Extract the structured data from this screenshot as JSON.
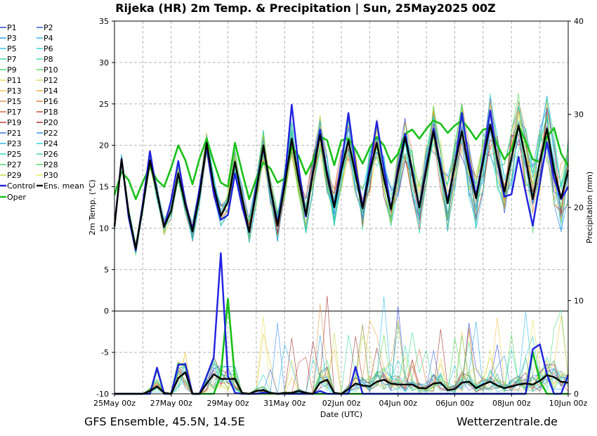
{
  "chart_data": {
    "type": "line",
    "title": "Rijeka  (HR)  2m Temp. & Precipitation | Sun, 25May2025 00Z",
    "xlabel": "Date (UTC)",
    "ylabel": "2m Temp. (°C)",
    "y2label": "Precipitation (mm)",
    "ylim": [
      -10,
      35
    ],
    "y2lim": [
      0,
      40
    ],
    "yticks": [
      "35",
      "30",
      "25",
      "20",
      "15",
      "10",
      "5",
      "0",
      "-5",
      "-10"
    ],
    "y2ticks": [
      "40",
      "30",
      "20",
      "10",
      "0"
    ],
    "xlim": [
      0,
      384
    ],
    "xticks": [
      {
        "t": 0,
        "label": "25May 00z"
      },
      {
        "t": 48,
        "label": "27May 00z"
      },
      {
        "t": 96,
        "label": "29May 00z"
      },
      {
        "t": 144,
        "label": "31May 00z"
      },
      {
        "t": 192,
        "label": "02Jun 00z"
      },
      {
        "t": 240,
        "label": "04Jun 00z"
      },
      {
        "t": 288,
        "label": "06Jun 00z"
      },
      {
        "t": 336,
        "label": "08Jun 00z"
      },
      {
        "t": 384,
        "label": "10Jun 00z"
      }
    ],
    "grid": true,
    "legend_position": "left",
    "legend": [
      "P1",
      "P2",
      "P3",
      "P4",
      "P5",
      "P6",
      "P7",
      "P8",
      "P9",
      "P10",
      "P11",
      "P12",
      "P13",
      "P14",
      "P15",
      "P16",
      "P17",
      "P18",
      "P19",
      "P20",
      "P21",
      "P22",
      "P23",
      "P24",
      "P25",
      "P26",
      "P27",
      "P28",
      "P29",
      "P30",
      "Control",
      "Ens. mean",
      "Oper"
    ],
    "legend_colors": [
      "#1f3fdc",
      "#1f5bdc",
      "#1f9ee6",
      "#24b4e8",
      "#22c8e0",
      "#24d8c8",
      "#30d8a0",
      "#34d890",
      "#3cd870",
      "#50d850",
      "#e8e050",
      "#e8d050",
      "#f0c040",
      "#e8a840",
      "#e09040",
      "#d87838",
      "#d86030",
      "#c84830",
      "#b83028",
      "#a02828",
      "#3068e0",
      "#2c88e8",
      "#28b8e8",
      "#20d0d8",
      "#20d8b0",
      "#30d888",
      "#3cd868",
      "#48d850",
      "#c0d840",
      "#e8e848",
      "#2020e0",
      "#000000",
      "#18c018"
    ],
    "temp_times": [
      0,
      6,
      12,
      18,
      24,
      30,
      36,
      42,
      48,
      54,
      60,
      66,
      72,
      78,
      84,
      90,
      96,
      102,
      108,
      114,
      120,
      126,
      132,
      138,
      144,
      150,
      156,
      162,
      168,
      174,
      180,
      186,
      192,
      198,
      204,
      210,
      216,
      222,
      228,
      234,
      240,
      246,
      252,
      258,
      264,
      270,
      276,
      282,
      288,
      294,
      300,
      306,
      312,
      318,
      324,
      330,
      336,
      342,
      348,
      354,
      360,
      366,
      372,
      378,
      384
    ],
    "series": [
      {
        "name": "Ens. mean",
        "values": [
          10.2,
          18.3,
          11.8,
          7.5,
          12.6,
          18.2,
          14.3,
          10.2,
          12.1,
          16.6,
          12.8,
          9.6,
          14.0,
          20.3,
          15.1,
          11.5,
          13.2,
          18.0,
          13.6,
          9.6,
          14.4,
          20.0,
          14.8,
          10.3,
          15.1,
          20.8,
          15.8,
          11.6,
          16.6,
          21.3,
          16.4,
          12.5,
          17.0,
          20.6,
          16.5,
          12.4,
          16.8,
          20.3,
          16.0,
          12.3,
          16.8,
          21.0,
          16.7,
          12.5,
          17.2,
          21.7,
          17.2,
          13.0,
          17.6,
          21.7,
          17.2,
          13.6,
          18.1,
          22.5,
          18.4,
          14.4,
          18.5,
          22.4,
          18.4,
          13.5,
          18.0,
          22.0,
          17.0,
          13.6,
          17.0
        ]
      },
      {
        "name": "Control",
        "values": [
          10.2,
          18.4,
          11.3,
          7.3,
          13.0,
          19.3,
          14.2,
          10.1,
          13.4,
          18.1,
          13.1,
          9.9,
          14.8,
          19.8,
          14.2,
          11.0,
          11.6,
          16.6,
          12.6,
          9.5,
          14.9,
          19.7,
          14.8,
          10.6,
          15.7,
          24.9,
          17.2,
          11.4,
          16.9,
          21.9,
          16.7,
          12.7,
          17.7,
          23.9,
          17.5,
          12.6,
          17.3,
          22.9,
          17.3,
          12.3,
          17.3,
          21.4,
          16.9,
          12.6,
          17.5,
          22.0,
          17.6,
          13.3,
          17.6,
          23.9,
          18.3,
          13.9,
          18.4,
          24.2,
          18.1,
          13.8,
          14.1,
          18.6,
          14.3,
          10.3,
          15.4,
          20.4,
          16.0,
          13.5,
          15.0
        ]
      },
      {
        "name": "Oper",
        "values": [
          14.0,
          16.8,
          15.8,
          13.5,
          15.6,
          17.4,
          15.8,
          15.0,
          17.3,
          20.0,
          18.2,
          15.3,
          18.4,
          20.8,
          18.0,
          15.5,
          15.0,
          20.3,
          16.8,
          13.5,
          16.0,
          17.9,
          17.2,
          15.5,
          16.0,
          19.8,
          18.7,
          16.5,
          18.2,
          21.1,
          20.6,
          17.6,
          20.6,
          20.8,
          19.5,
          17.8,
          19.7,
          21.0,
          20.0,
          17.9,
          19.0,
          21.4,
          21.9,
          20.8,
          22.0,
          23.0,
          22.6,
          21.5,
          22.4,
          23.0,
          22.0,
          20.7,
          21.9,
          22.1,
          20.1,
          18.3,
          19.5,
          22.3,
          20.5,
          18.3,
          18.0,
          21.0,
          22.1,
          19.0,
          17.5
        ]
      }
    ],
    "precip_times": [
      0,
      6,
      12,
      18,
      24,
      30,
      36,
      42,
      48,
      54,
      60,
      66,
      72,
      78,
      84,
      90,
      96,
      102,
      108,
      114,
      120,
      126,
      132,
      138,
      144,
      150,
      156,
      162,
      168,
      174,
      180,
      186,
      192,
      198,
      204,
      210,
      216,
      222,
      228,
      234,
      240,
      246,
      252,
      258,
      264,
      270,
      276,
      282,
      288,
      294,
      300,
      306,
      312,
      318,
      324,
      330,
      336,
      342,
      348,
      354,
      360,
      366,
      372,
      378,
      384
    ],
    "precip_series": [
      {
        "name": "Ens. mean",
        "values": [
          0,
          0,
          0,
          0,
          0,
          0.3,
          0.8,
          0.1,
          0,
          1.7,
          2.3,
          0,
          0,
          1.1,
          2.1,
          1.6,
          1.6,
          1.6,
          0.1,
          0,
          0.3,
          0.4,
          0.1,
          0,
          0.1,
          0.1,
          0.3,
          0.1,
          0,
          1.2,
          1.5,
          0.1,
          0,
          0.5,
          1.1,
          0.9,
          0.8,
          1.3,
          1.5,
          1.1,
          1.0,
          1.0,
          1.0,
          0.6,
          0.6,
          1.1,
          1.2,
          0.4,
          0.5,
          1.2,
          1.3,
          0.6,
          1.0,
          1.3,
          0.9,
          0.6,
          0.8,
          1.0,
          1.1,
          1.0,
          1.4,
          2.0,
          1.8,
          1.3,
          1.2
        ]
      },
      {
        "name": "Control",
        "values": [
          0,
          0,
          0,
          0,
          0,
          0,
          2.8,
          0,
          0,
          3.1,
          3.2,
          0,
          0,
          1.9,
          3.9,
          15.1,
          1.9,
          0.1,
          0,
          0,
          0,
          0.1,
          0.1,
          0,
          0,
          0,
          0,
          0,
          0,
          0.3,
          0,
          0,
          0,
          0,
          2.9,
          0,
          0,
          0,
          0,
          0,
          0,
          0,
          0,
          0,
          0,
          0,
          0,
          0,
          0,
          0,
          0,
          0,
          0,
          0,
          0,
          0,
          0,
          0,
          0,
          4.8,
          5.3,
          2.1,
          0,
          0,
          2.0
        ]
      },
      {
        "name": "Oper",
        "values": [
          0,
          0,
          0,
          0,
          0,
          0,
          2.7,
          0,
          0,
          3.2,
          3.1,
          0,
          0,
          0,
          0,
          2.0,
          10.2,
          1.5,
          0,
          0,
          0,
          0,
          0,
          0,
          0,
          0,
          0,
          0,
          0,
          0,
          0,
          0,
          0,
          0,
          0,
          0,
          0,
          0,
          0,
          0,
          0,
          0,
          0,
          0,
          0,
          0,
          0,
          0,
          0,
          0,
          0,
          0,
          0,
          0,
          0,
          0,
          0,
          0,
          0,
          4.5,
          1.4,
          0,
          0,
          0,
          0
        ]
      }
    ],
    "member_colors": [
      "#1f3fdc",
      "#1f9ee6",
      "#22c8e0",
      "#30d8a0",
      "#3cd870",
      "#e8e050",
      "#f0c040",
      "#e8a840",
      "#e09040",
      "#d87838",
      "#c84830",
      "#a02828",
      "#3068e0",
      "#2c88e8",
      "#28b8e8",
      "#20d0d8",
      "#20d8b0",
      "#30d888",
      "#48d850",
      "#c0d840"
    ]
  },
  "footer": {
    "left": "GFS Ensemble, 45.5N, 14.5E",
    "right": "Wetterzentrale.de"
  }
}
